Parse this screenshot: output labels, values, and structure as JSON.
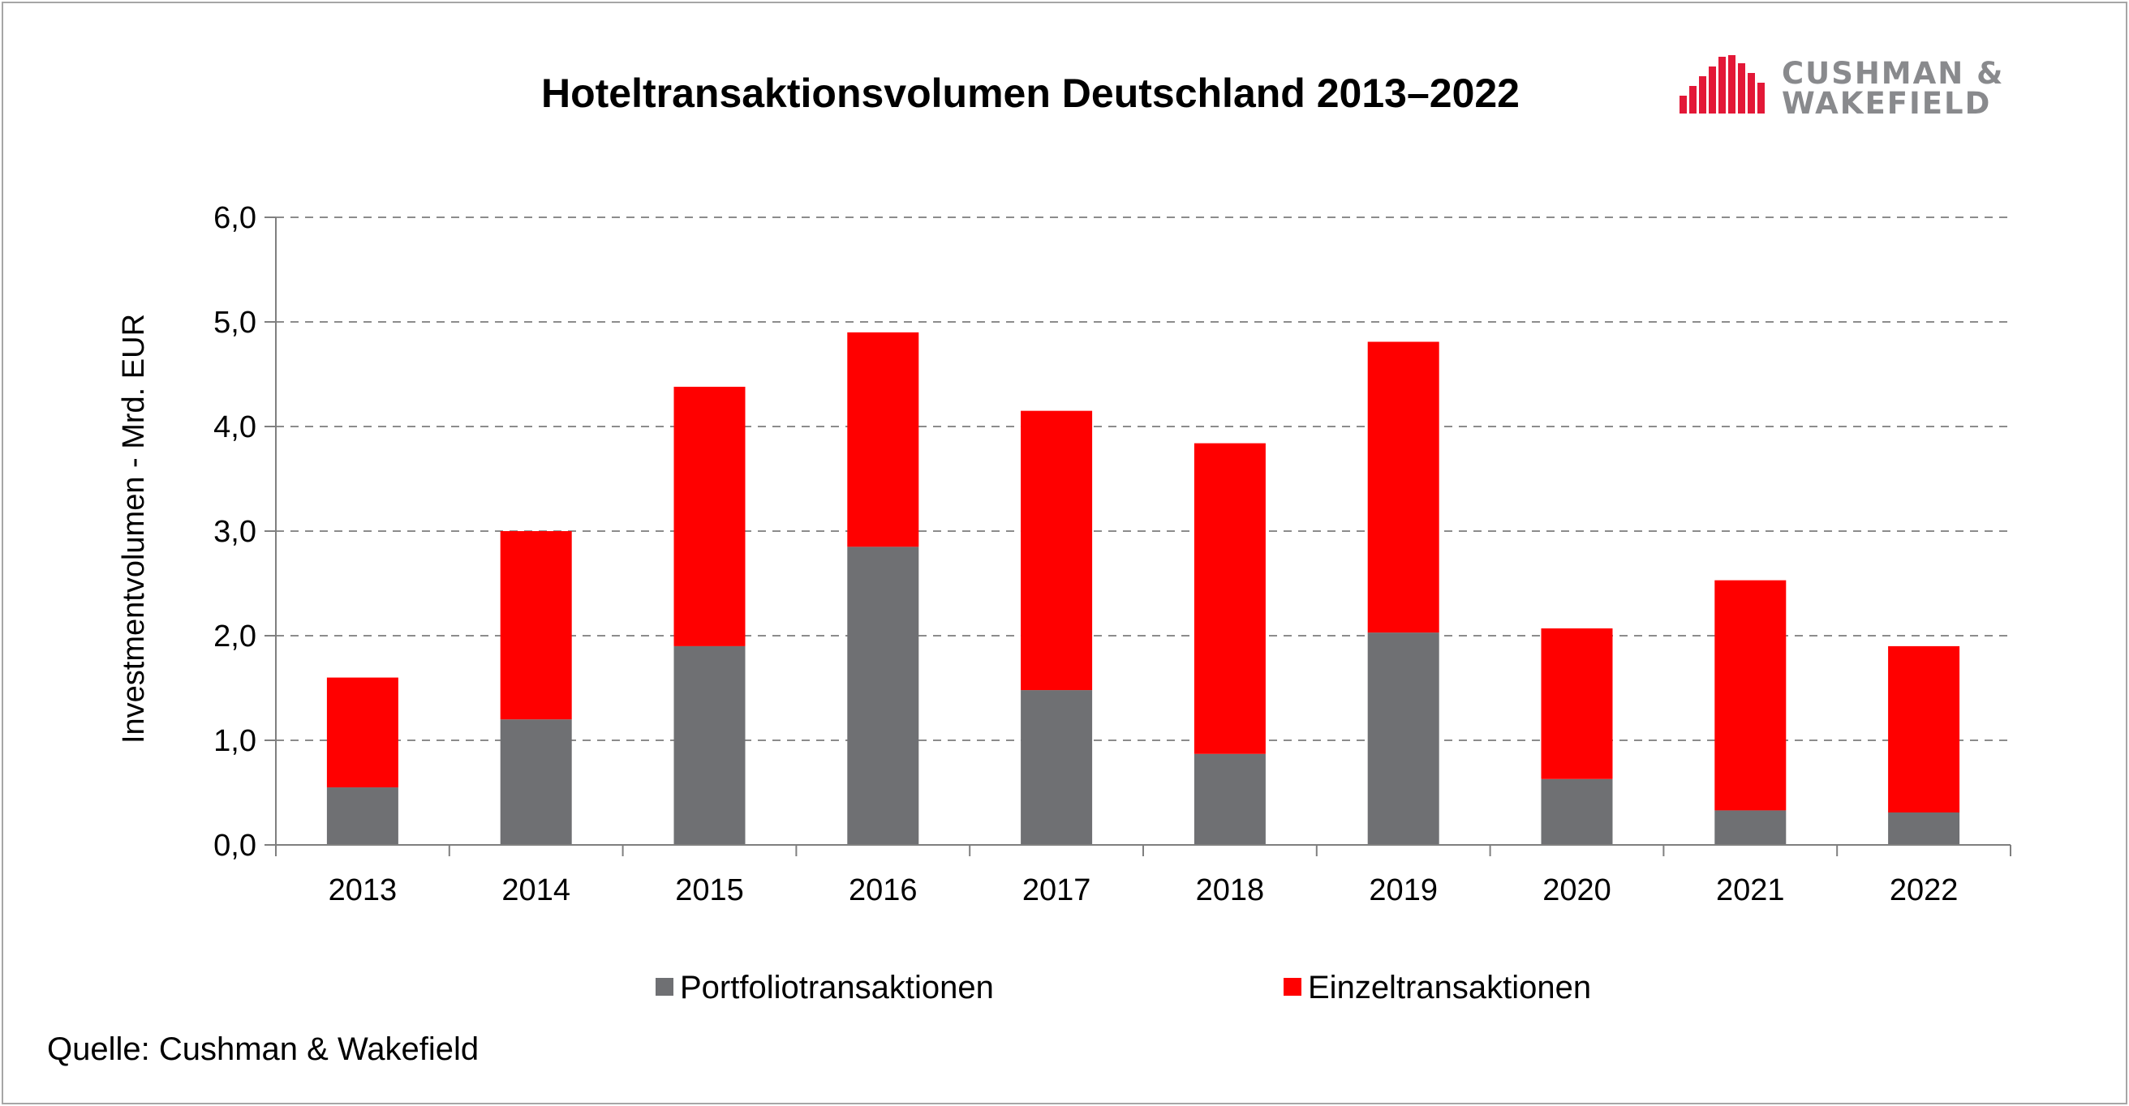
{
  "chart_data": {
    "type": "bar",
    "stacked": true,
    "title": "Hoteltransaktionsvolumen  Deutschland 2013–2022",
    "xlabel": "",
    "ylabel": "Investmentvolumen - Mrd. EUR",
    "categories": [
      "2013",
      "2014",
      "2015",
      "2016",
      "2017",
      "2018",
      "2019",
      "2020",
      "2021",
      "2022"
    ],
    "series": [
      {
        "name": "Portfoliotransaktionen",
        "color": "#6f7073",
        "values": [
          0.55,
          1.2,
          1.9,
          2.85,
          1.48,
          0.87,
          2.03,
          0.63,
          0.33,
          0.31
        ]
      },
      {
        "name": "Einzeltransaktionen",
        "color": "#ff0000",
        "values": [
          1.05,
          1.8,
          2.48,
          2.05,
          2.67,
          2.97,
          2.78,
          1.44,
          2.2,
          1.59
        ]
      }
    ],
    "ylim": [
      0,
      6
    ],
    "yticks": [
      0,
      1,
      2,
      3,
      4,
      5,
      6
    ],
    "ytick_labels": [
      "0,0",
      "1,0",
      "2,0",
      "3,0",
      "4,0",
      "5,0",
      "6,0"
    ],
    "grid": true,
    "legend_position": "bottom"
  },
  "source": "Quelle: Cushman & Wakefield",
  "logo": {
    "line1": "CUSHMAN &",
    "line2": "WAKEFIELD",
    "color": "#e31837",
    "text_color": "#898a8d"
  }
}
